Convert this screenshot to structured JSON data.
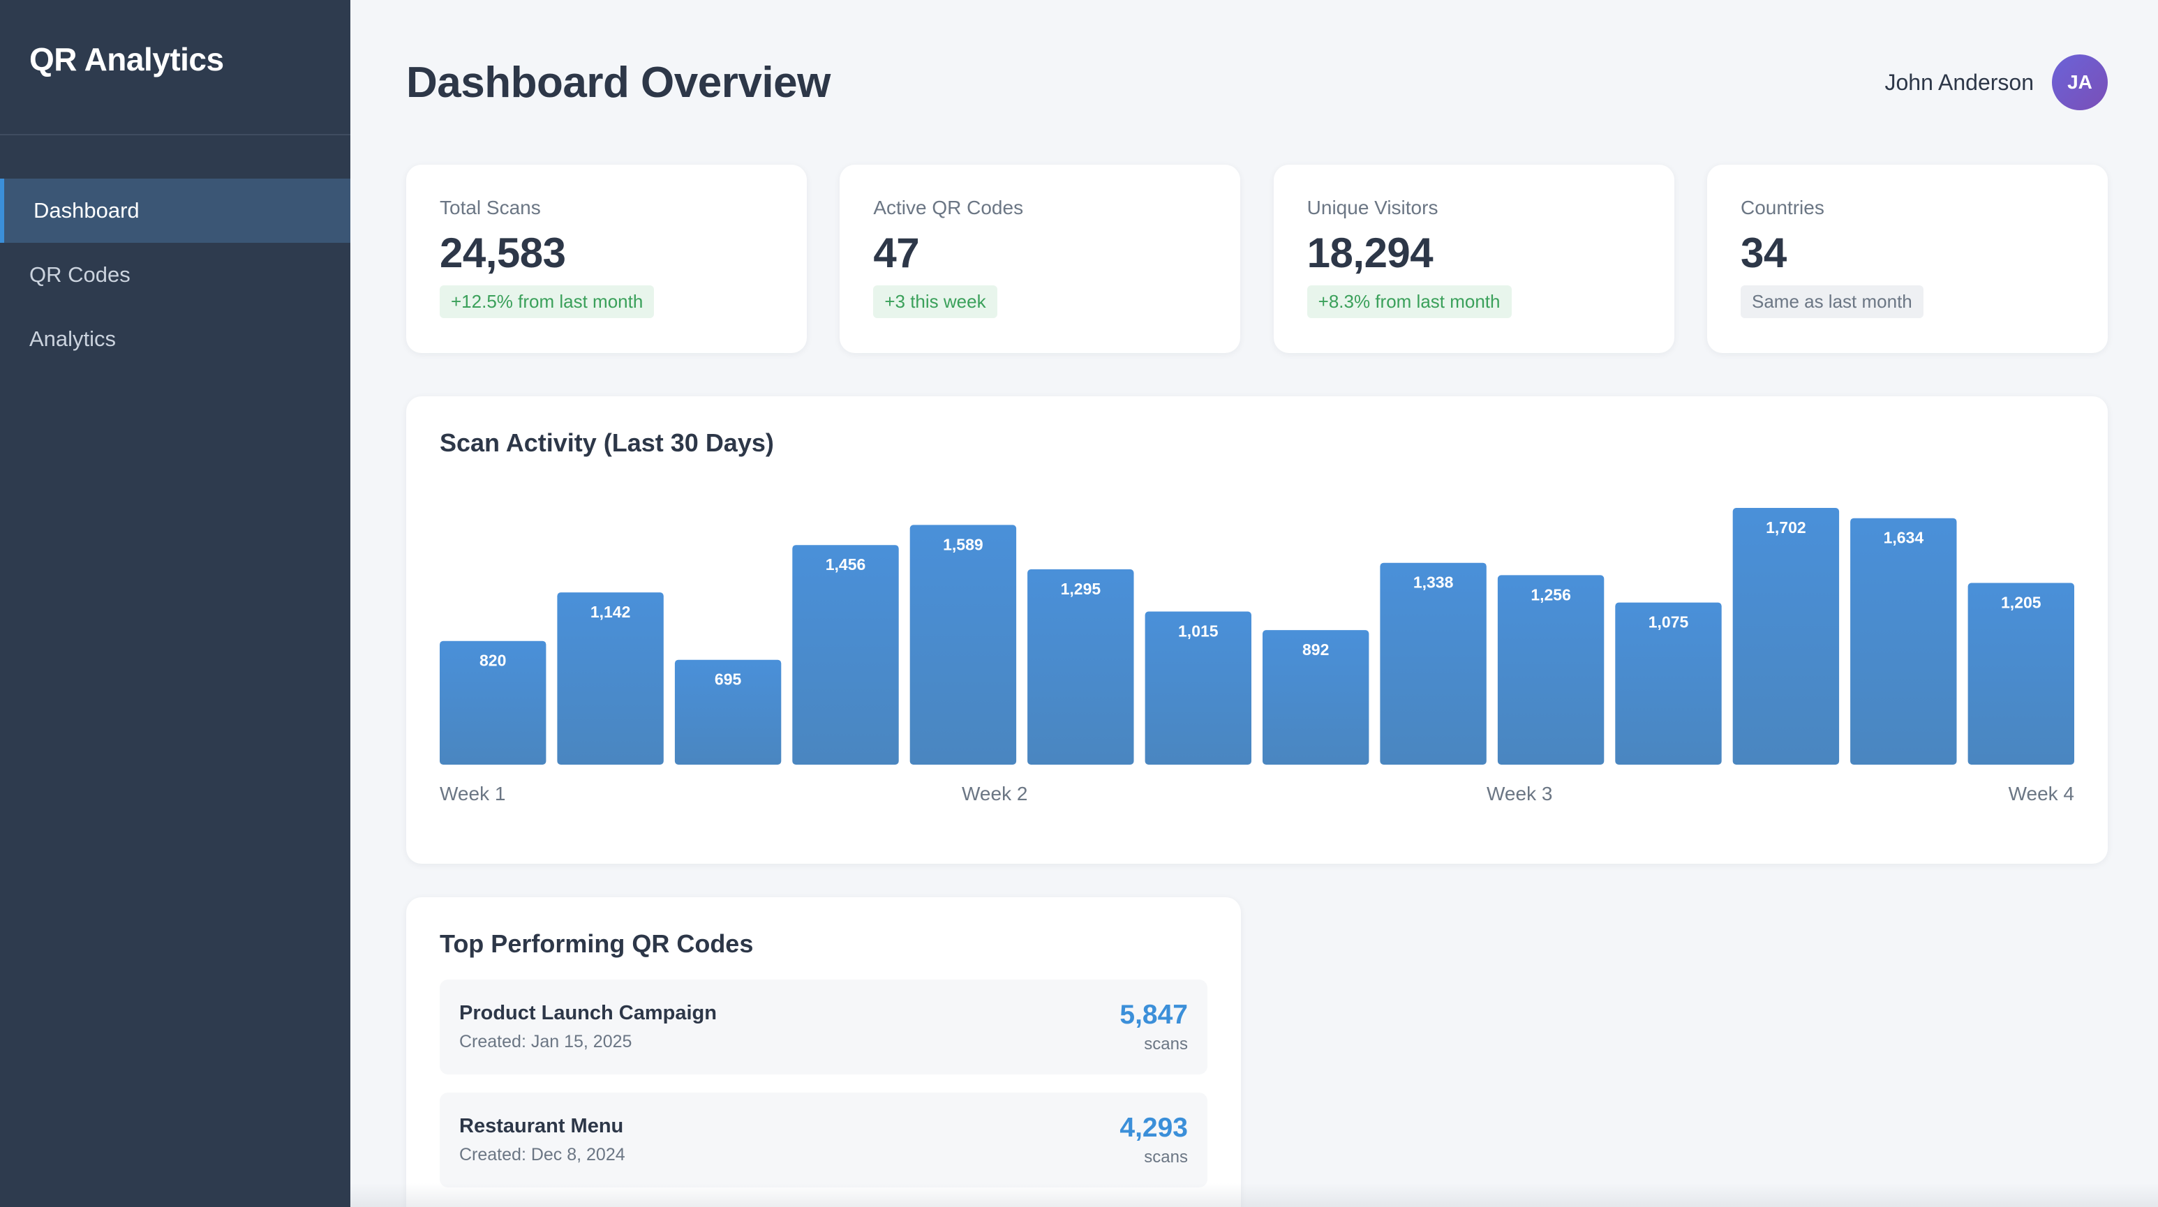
{
  "app": {
    "title": "QR Analytics"
  },
  "sidebar": {
    "items": [
      {
        "label": "Dashboard",
        "active": true
      },
      {
        "label": "QR Codes",
        "active": false
      },
      {
        "label": "Analytics",
        "active": false
      }
    ]
  },
  "header": {
    "title": "Dashboard Overview",
    "user_name": "John Anderson",
    "avatar_initials": "JA"
  },
  "stats": [
    {
      "label": "Total Scans",
      "value": "24,583",
      "change": "+12.5% from last month",
      "trend": "positive"
    },
    {
      "label": "Active QR Codes",
      "value": "47",
      "change": "+3 this week",
      "trend": "positive"
    },
    {
      "label": "Unique Visitors",
      "value": "18,294",
      "change": "+8.3% from last month",
      "trend": "positive"
    },
    {
      "label": "Countries",
      "value": "34",
      "change": "Same as last month",
      "trend": "neutral"
    }
  ],
  "chart": {
    "title": "Scan Activity (Last 30 Days)",
    "week_labels": [
      "Week 1",
      "Week 2",
      "Week 3",
      "Week 4"
    ]
  },
  "chart_data": {
    "type": "bar",
    "categories": [
      "",
      "",
      "",
      "",
      "",
      "",
      "",
      "",
      "",
      "",
      "",
      "",
      "",
      ""
    ],
    "values": [
      820,
      1142,
      695,
      1456,
      1589,
      1295,
      1015,
      892,
      1338,
      1256,
      1075,
      1702,
      1634,
      1205
    ],
    "data_labels": [
      "820",
      "1,142",
      "695",
      "1,456",
      "1,589",
      "1,295",
      "1,015",
      "892",
      "1,338",
      "1,256",
      "1,075",
      "1,702",
      "1,634",
      "1,205"
    ],
    "title": "Scan Activity (Last 30 Days)",
    "xlabel": "",
    "ylabel": "",
    "x_tick_labels": [
      "Week 1",
      "Week 2",
      "Week 3",
      "Week 4"
    ],
    "colors": {
      "bar_top": "#4a90d9",
      "bar_bottom": "#4a86c0",
      "label": "#ffffff"
    },
    "grid": false,
    "legend": "none"
  },
  "top_codes": {
    "title": "Top Performing QR Codes",
    "items": [
      {
        "name": "Product Launch Campaign",
        "created": "Created: Jan 15, 2025",
        "scans": "5,847",
        "unit": "scans"
      },
      {
        "name": "Restaurant Menu",
        "created": "Created: Dec 8, 2024",
        "scans": "4,293",
        "unit": "scans"
      }
    ]
  },
  "colors": {
    "sidebar_bg": "#2e3b4e",
    "accent": "#3b8fd9",
    "positive": "#3aa05a"
  }
}
